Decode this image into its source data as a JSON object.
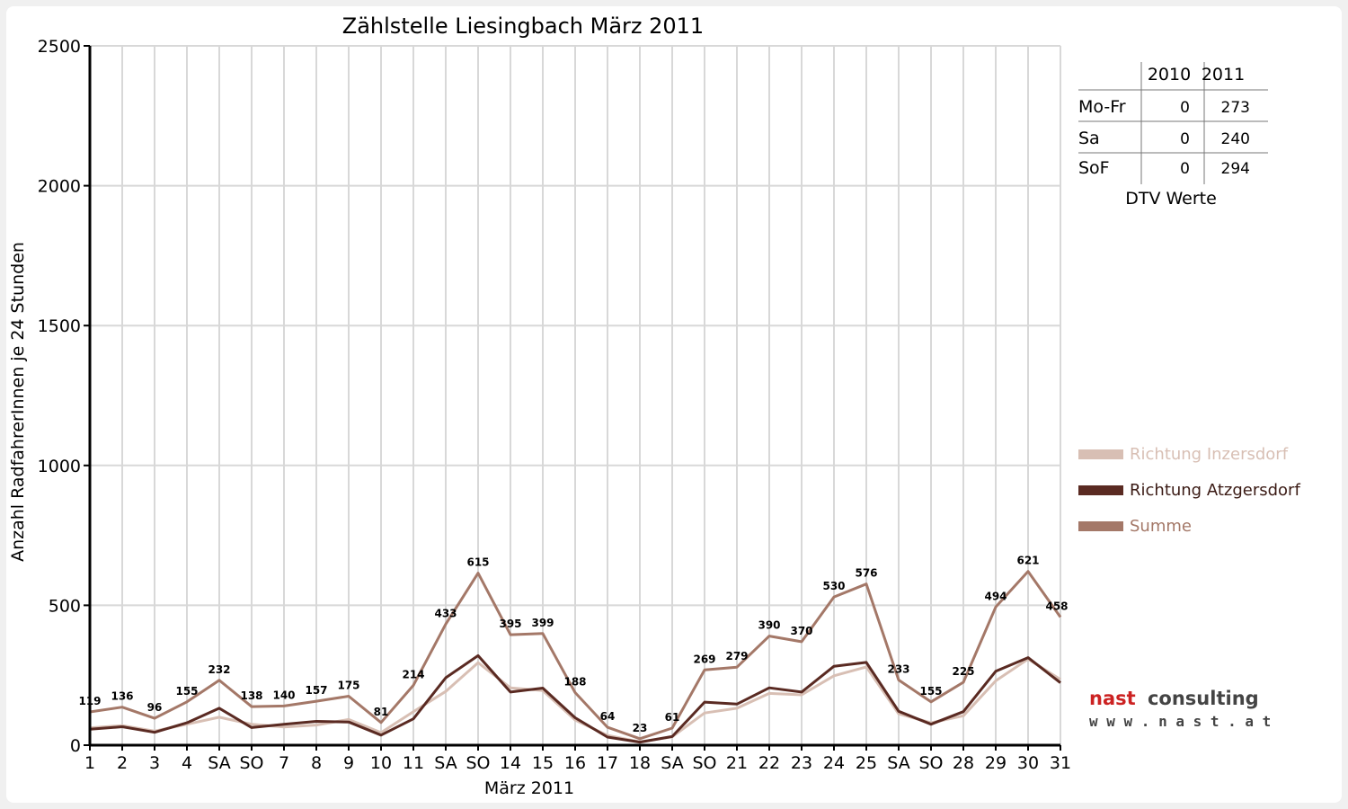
{
  "chart_data": {
    "type": "line",
    "title": "Zählstelle Liesingbach März 2011",
    "xlabel": "März 2011",
    "ylabel": "Anzahl RadfahrerInnen je 24 Stunden",
    "ylim": [
      0,
      2500
    ],
    "yticks": [
      "0",
      "500",
      "1000",
      "1500",
      "2000",
      "2500"
    ],
    "grid": true,
    "categories": [
      "1",
      "2",
      "3",
      "4",
      "SA",
      "SO",
      "7",
      "8",
      "9",
      "10",
      "11",
      "SA",
      "SO",
      "14",
      "15",
      "16",
      "17",
      "18",
      "SA",
      "SO",
      "21",
      "22",
      "23",
      "24",
      "25",
      "SA",
      "SO",
      "28",
      "29",
      "30",
      "31"
    ],
    "holiday_indices": [
      5,
      12,
      19,
      26
    ],
    "series": [
      {
        "name": "Richtung Inzersdorf",
        "color": "#d8bfb4",
        "values": [
          62,
          70,
          50,
          75,
          100,
          75,
          65,
          72,
          92,
          45,
          120,
          192,
          295,
          205,
          195,
          90,
          35,
          12,
          30,
          115,
          132,
          185,
          180,
          248,
          280,
          112,
          80,
          105,
          230,
          308,
          235
        ]
      },
      {
        "name": "Richtung Atzgersdorf",
        "color": "#5a2a22",
        "values": [
          57,
          66,
          46,
          80,
          132,
          63,
          75,
          85,
          83,
          36,
          94,
          241,
          320,
          190,
          204,
          98,
          29,
          11,
          31,
          154,
          147,
          205,
          190,
          282,
          296,
          121,
          75,
          120,
          264,
          313,
          223
        ]
      },
      {
        "name": "Summe",
        "color": "#a47868",
        "values": [
          119,
          136,
          96,
          155,
          232,
          138,
          140,
          157,
          175,
          81,
          214,
          433,
          615,
          395,
          399,
          188,
          64,
          23,
          61,
          269,
          279,
          390,
          370,
          530,
          576,
          233,
          155,
          225,
          494,
          621,
          458
        ]
      }
    ],
    "data_labels": [
      "119",
      "136",
      "96",
      "155",
      "232",
      "138",
      "140",
      "157",
      "175",
      "81",
      "214",
      "433",
      "615",
      "395",
      "399",
      "188",
      "64",
      "23",
      "61",
      "269",
      "279",
      "390",
      "370",
      "530",
      "576",
      "233",
      "155",
      "225",
      "494",
      "621",
      "458"
    ],
    "legend_placement": "right"
  },
  "dtv_table": {
    "caption": "DTV Werte",
    "columns": [
      "2010",
      "2011"
    ],
    "rows": [
      {
        "label": "Mo-Fr",
        "v2010": "0",
        "v2011": "273"
      },
      {
        "label": "Sa",
        "v2010": "0",
        "v2011": "240"
      },
      {
        "label": "SoF",
        "v2010": "0",
        "v2011": "294"
      }
    ]
  },
  "logo": {
    "line1a": "nast",
    "line1b": "consulting",
    "line2": "w w w . n a s t . a t",
    "color_accent": "#cc2222",
    "color_text": "#444444"
  },
  "colors": {
    "holiday": "#ff0000",
    "grid": "#d8d8d8"
  }
}
